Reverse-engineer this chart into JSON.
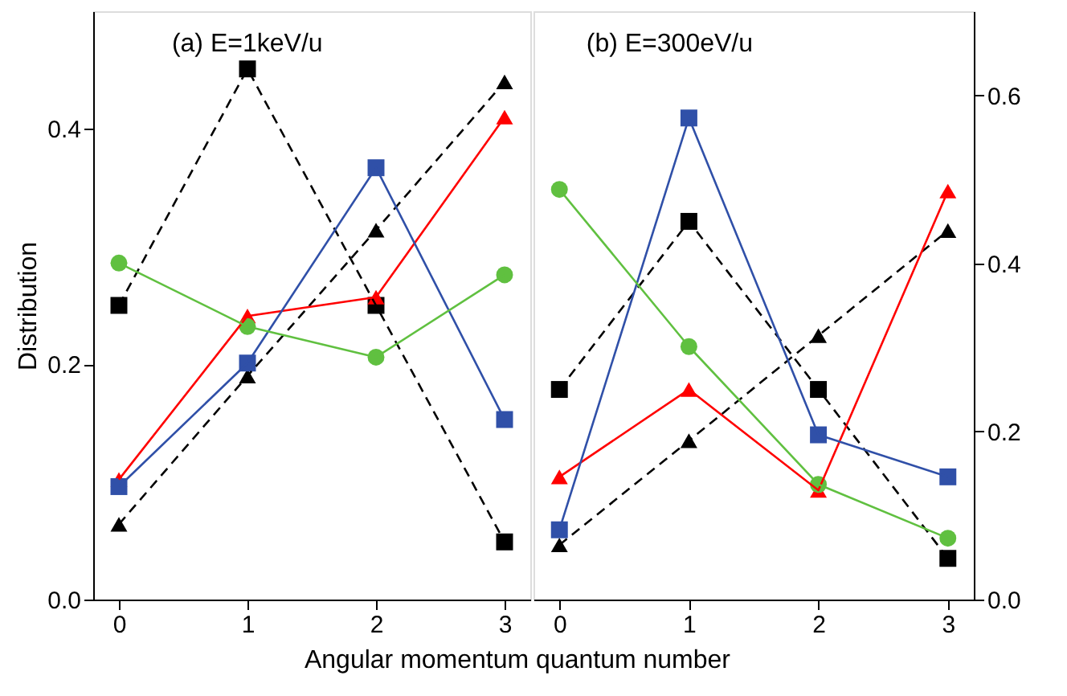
{
  "chart_data": [
    {
      "type": "line",
      "title": "(a) E=1keV/u",
      "xlabel": "Angular momentum quantum number",
      "ylabel": "Distribution",
      "x": [
        0,
        1,
        2,
        3
      ],
      "xlim": [
        -0.2,
        3.2
      ],
      "xticks": [
        0,
        1,
        2,
        3
      ],
      "ylim": [
        0,
        0.5
      ],
      "yticks": [
        {
          "value": 0,
          "label": "0.0"
        },
        0.2,
        0.4
      ],
      "grid": false,
      "legend": false,
      "series": [
        {
          "color": "#000000",
          "values": [
            0.25,
            0.451,
            0.25,
            0.049
          ],
          "marker": "square",
          "line_style": "dashed"
        },
        {
          "color": "#000000",
          "values": [
            0.064,
            0.19,
            0.314,
            0.44
          ],
          "marker": "triangle",
          "line_style": "dashed"
        },
        {
          "color": "#ff0000",
          "values": [
            0.102,
            0.241,
            0.257,
            0.41
          ],
          "marker": "triangle",
          "line_style": "solid"
        },
        {
          "color": "#3050a8",
          "values": [
            0.096,
            0.201,
            0.367,
            0.153
          ],
          "marker": "square",
          "line_style": "solid"
        },
        {
          "color": "#60c040",
          "values": [
            0.286,
            0.232,
            0.206,
            0.276
          ],
          "marker": "circle",
          "line_style": "solid"
        }
      ]
    },
    {
      "type": "line",
      "title": "(b) E=300eV/u",
      "x": [
        0,
        1,
        2,
        3
      ],
      "xlim": [
        -0.2,
        3.2
      ],
      "xticks": [
        0,
        1,
        2,
        3
      ],
      "y2lim": [
        0,
        0.7
      ],
      "y2ticks": [
        {
          "value": 0,
          "label": "0.0"
        },
        0.2,
        0.4,
        0.6
      ],
      "grid": false,
      "legend": false,
      "series": [
        {
          "color": "#000000",
          "values": [
            0.25,
            0.45,
            0.25,
            0.049
          ],
          "marker": "square",
          "line_style": "dashed",
          "axis": "y2"
        },
        {
          "color": "#000000",
          "values": [
            0.065,
            0.189,
            0.314,
            0.439
          ],
          "marker": "triangle",
          "line_style": "dashed",
          "axis": "y2"
        },
        {
          "color": "#ff0000",
          "values": [
            0.146,
            0.25,
            0.13,
            0.486
          ],
          "marker": "triangle",
          "line_style": "solid",
          "axis": "y2"
        },
        {
          "color": "#3050a8",
          "values": [
            0.083,
            0.573,
            0.196,
            0.146
          ],
          "marker": "square",
          "line_style": "solid",
          "axis": "y2"
        },
        {
          "color": "#60c040",
          "values": [
            0.488,
            0.301,
            0.137,
            0.073
          ],
          "marker": "circle",
          "line_style": "solid",
          "axis": "y2"
        }
      ]
    }
  ]
}
